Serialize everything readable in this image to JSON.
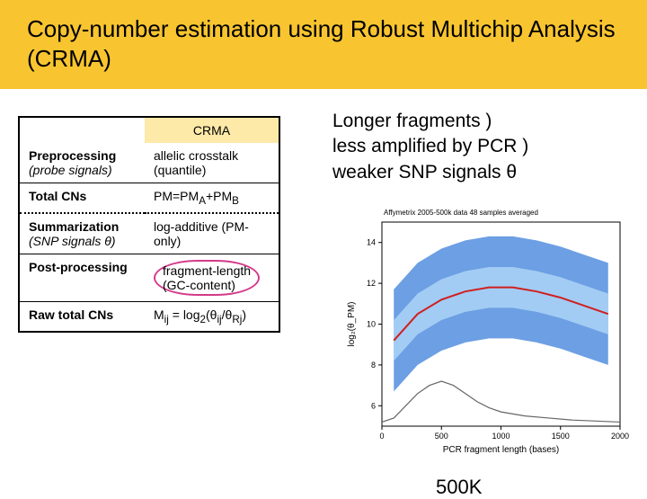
{
  "title": "Copy-number estimation using Robust Multichip Analysis (CRMA)",
  "table": {
    "header_col2": "CRMA",
    "rows": [
      {
        "label_bold": "Preprocessing",
        "label_sub": "(probe signals)",
        "value": "allelic crosstalk (quantile)",
        "sep": "none"
      },
      {
        "label_bold": "Total CNs",
        "label_sub": "",
        "value_html": "PM=PM<sub>A</sub>+PM<sub>B</sub>",
        "sep": "solid"
      },
      {
        "label_bold": "Summarization",
        "label_sub": "(SNP signals θ)",
        "value": "log-additive (PM-only)",
        "sep": "dotted"
      },
      {
        "label_bold": "Post-processing",
        "label_sub": "",
        "value_highlight": "fragment-length (GC-content)",
        "sep": "solid"
      },
      {
        "label_bold": "Raw total CNs",
        "label_sub": "",
        "value_html": "M<sub>ij</sub> = log<sub>2</sub>(θ<sub>ij</sub>/θ<sub>Rj</sub>)",
        "sep": "solid"
      }
    ]
  },
  "right_lines": [
    "Longer fragments )",
    "less amplified by PCR )",
    "weaker SNP signals θ"
  ],
  "chart": {
    "title": "Affymetrix 2005-500k data              48 samples averaged",
    "title_fontsize": 8,
    "xlabel": "PCR fragment length (bases)",
    "ylabel": "log₂(θ_PM)",
    "label_fontsize": 10,
    "xlim": [
      0,
      2000
    ],
    "xtick_step": 500,
    "ylim": [
      5,
      15
    ],
    "ytick_vals": [
      6,
      8,
      10,
      12,
      14
    ],
    "background_color": "#ffffff",
    "cloud_color": "#3b7fd9",
    "trend_color": "#d02020",
    "density_color": "#666666",
    "trend_points": [
      {
        "x": 100,
        "y": 9.2
      },
      {
        "x": 300,
        "y": 10.5
      },
      {
        "x": 500,
        "y": 11.2
      },
      {
        "x": 700,
        "y": 11.6
      },
      {
        "x": 900,
        "y": 11.8
      },
      {
        "x": 1100,
        "y": 11.8
      },
      {
        "x": 1300,
        "y": 11.6
      },
      {
        "x": 1500,
        "y": 11.3
      },
      {
        "x": 1700,
        "y": 10.9
      },
      {
        "x": 1900,
        "y": 10.5
      }
    ],
    "density_points": [
      {
        "x": 0,
        "y": 5.2
      },
      {
        "x": 100,
        "y": 5.4
      },
      {
        "x": 200,
        "y": 6.0
      },
      {
        "x": 300,
        "y": 6.6
      },
      {
        "x": 400,
        "y": 7.0
      },
      {
        "x": 500,
        "y": 7.2
      },
      {
        "x": 600,
        "y": 7.0
      },
      {
        "x": 700,
        "y": 6.6
      },
      {
        "x": 800,
        "y": 6.2
      },
      {
        "x": 900,
        "y": 5.9
      },
      {
        "x": 1000,
        "y": 5.7
      },
      {
        "x": 1200,
        "y": 5.5
      },
      {
        "x": 1400,
        "y": 5.4
      },
      {
        "x": 1600,
        "y": 5.3
      },
      {
        "x": 1800,
        "y": 5.25
      },
      {
        "x": 2000,
        "y": 5.2
      }
    ]
  },
  "chart_caption": "500K"
}
